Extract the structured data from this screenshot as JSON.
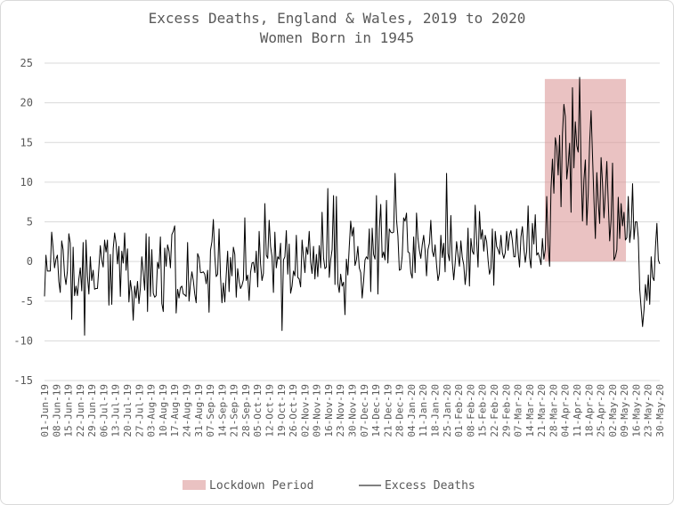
{
  "colors": {
    "line": "#000000",
    "lockdown_fill": "#dc9a9a",
    "grid": "#d9d9d9",
    "text": "#595959"
  },
  "chart_data": {
    "type": "line",
    "title": "Excess Deaths, England & Wales, 2019 to 2020",
    "subtitle": "Women Born in 1945",
    "xlabel": "",
    "ylabel": "",
    "ylim": [
      -15,
      25
    ],
    "yticks": [
      -15,
      -10,
      -5,
      0,
      5,
      10,
      15,
      20,
      25
    ],
    "grid": true,
    "legend_position": "bottom",
    "x_start": "2019-06-01",
    "x_end": "2020-05-30",
    "x_tick_labels": [
      "01-Jun-19",
      "08-Jun-19",
      "15-Jun-19",
      "22-Jun-19",
      "29-Jun-19",
      "06-Jul-19",
      "13-Jul-19",
      "20-Jul-19",
      "27-Jul-19",
      "03-Aug-19",
      "10-Aug-19",
      "17-Aug-19",
      "24-Aug-19",
      "31-Aug-19",
      "07-Sep-19",
      "14-Sep-19",
      "21-Sep-19",
      "28-Sep-19",
      "05-Oct-19",
      "12-Oct-19",
      "19-Oct-19",
      "26-Oct-19",
      "02-Nov-19",
      "09-Nov-19",
      "16-Nov-19",
      "23-Nov-19",
      "30-Nov-19",
      "07-Dec-19",
      "14-Dec-19",
      "21-Dec-19",
      "28-Dec-19",
      "04-Jan-20",
      "11-Jan-20",
      "18-Jan-20",
      "25-Jan-20",
      "01-Feb-20",
      "08-Feb-20",
      "15-Feb-20",
      "22-Feb-20",
      "29-Feb-20",
      "07-Mar-20",
      "14-Mar-20",
      "21-Mar-20",
      "28-Mar-20",
      "04-Apr-20",
      "11-Apr-20",
      "18-Apr-20",
      "25-Apr-20",
      "02-May-20",
      "09-May-20",
      "16-May-20",
      "23-May-20",
      "30-May-20"
    ],
    "series": [
      {
        "name": "Excess Deaths",
        "type": "line",
        "values": [
          -4.4,
          0.8,
          -1.2,
          -1.2,
          -1.2,
          3.7,
          1.7,
          -0.8,
          0.3,
          0.8,
          -2.5,
          -3.9,
          2.6,
          1.5,
          -1.7,
          -2.9,
          -1.2,
          3.5,
          2.3,
          -7.3,
          1.8,
          -4.3,
          -3.1,
          -4.3,
          -2.2,
          -0.8,
          -3.7,
          2.4,
          -9.3,
          2.7,
          -1.8,
          -4.1,
          0.6,
          -2.4,
          -1.1,
          -3.5,
          -3.4,
          -3.4,
          -0.8,
          2.0,
          0.2,
          -0.7,
          2.7,
          1.2,
          2.7,
          -5.5,
          0.9,
          -5.4,
          1.6,
          3.6,
          2.3,
          -0.3,
          1.9,
          -4.4,
          1.3,
          -0.2,
          3.6,
          -1.1,
          1.6,
          -5.1,
          -2.4,
          -3.8,
          -7.4,
          -3.1,
          -4.6,
          -2.5,
          -5.3,
          -3.3,
          0.6,
          -1.4,
          -3.6,
          3.5,
          -6.3,
          3.1,
          -4.4,
          1.5,
          -4.0,
          -4.5,
          -4.3,
          -0.1,
          -0.9,
          3.1,
          -5.3,
          -6.3,
          1.7,
          -0.6,
          2.1,
          1.3,
          -0.8,
          3.4,
          3.8,
          4.5,
          -6.5,
          -3.5,
          -4.6,
          -3.3,
          -3.1,
          -4.1,
          -4.2,
          -4.4,
          2.4,
          -5.0,
          -2.8,
          -1.3,
          -2.4,
          -4.1,
          -5.2,
          1.0,
          0.5,
          -1.4,
          -1.4,
          -1.3,
          -1.6,
          -2.8,
          -1.1,
          -6.4,
          1.4,
          2.5,
          5.3,
          0.7,
          -1.9,
          -1.6,
          4.1,
          -1.9,
          -5.2,
          -2.7,
          -5.1,
          -1.7,
          1.3,
          -3.8,
          0.5,
          -1.8,
          1.8,
          0.9,
          -4.5,
          -0.9,
          -2.5,
          -3.4,
          -3.0,
          -2.3,
          5.5,
          -2.4,
          -1.7,
          -4.9,
          -1.4,
          -0.2,
          -0.1,
          -1.4,
          1.3,
          -3.2,
          3.8,
          -0.3,
          -2.4,
          -1.5,
          7.3,
          0.8,
          0.4,
          5.2,
          1.9,
          0.6,
          -3.9,
          3.7,
          -0.8,
          0.6,
          0.3,
          2.3,
          -8.7,
          0.2,
          0.6,
          3.9,
          -1.6,
          2.2,
          -4.0,
          -3.1,
          -1.2,
          -1.8,
          3.3,
          -2.0,
          -2.2,
          -3.2,
          2.7,
          0.6,
          -1.4,
          1.8,
          0.9,
          3.8,
          -0.1,
          -1.5,
          1.9,
          -2.2,
          0.9,
          -1.9,
          2.0,
          -0.8,
          6.2,
          0.5,
          -0.9,
          -0.7,
          9.2,
          -2.0,
          0.2,
          1.5,
          8.3,
          -2.9,
          8.2,
          -2.7,
          -3.9,
          -1.6,
          -3.1,
          -2.6,
          -6.7,
          0.3,
          -1.7,
          1.9,
          5.1,
          3.2,
          4.3,
          -0.5,
          0.2,
          1.9,
          -0.8,
          -1.4,
          -4.6,
          -2.5,
          0.2,
          0.6,
          0.3,
          4.1,
          -3.8,
          4.2,
          0.9,
          0.3,
          8.3,
          -4.1,
          4.1,
          7.2,
          0.5,
          1.2,
          0.2,
          7.7,
          -0.2,
          4.1,
          3.7,
          3.6,
          3.7,
          11.1,
          5.3,
          3.2,
          -1.1,
          -1.0,
          0.7,
          5.5,
          5.1,
          6.1,
          1.2,
          1.1,
          -1.4,
          -2.1,
          3.1,
          -1.4,
          6.1,
          2.9,
          1.4,
          0.4,
          2.1,
          3.3,
          1.4,
          -1.8,
          1.5,
          2.3,
          5.2,
          1.3,
          0.6,
          2.1,
          -0.4,
          -2.4,
          -1.5,
          3.3,
          0.5,
          2.3,
          -1.3,
          11.1,
          1.0,
          0.1,
          5.8,
          -0.1,
          -2.3,
          -0.2,
          2.5,
          0.8,
          -0.6,
          2.6,
          0.5,
          -0.4,
          -2.9,
          -1.0,
          4.2,
          -3.1,
          2.9,
          1.3,
          0.9,
          7.1,
          2.7,
          -0.7,
          6.3,
          2.8,
          4.0,
          1.3,
          3.3,
          2.5,
          0.2,
          -1.6,
          -0.9,
          4.1,
          -3.0,
          3.8,
          1.9,
          1.5,
          0.9,
          3.3,
          1.1,
          0.4,
          1.1,
          3.8,
          1.4,
          3.3,
          3.9,
          2.6,
          0.6,
          0.6,
          4.1,
          1.2,
          -0.7,
          3.1,
          4.4,
          1.8,
          -0.1,
          1.3,
          7.0,
          0.5,
          -0.8,
          4.8,
          2.2,
          5.9,
          0.8,
          1.1,
          0.5,
          -0.4,
          2.9,
          0.3,
          1.5,
          8.2,
          2.1,
          -0.6,
          9.2,
          12.9,
          8.6,
          15.6,
          14.5,
          10.9,
          15.9,
          6.9,
          16.1,
          19.8,
          18.3,
          10.4,
          12.2,
          14.9,
          6.2,
          21.9,
          11.8,
          17.6,
          14.6,
          13.8,
          23.2,
          12.0,
          5.1,
          10.3,
          12.8,
          4.6,
          8.6,
          15.0,
          19.0,
          13.4,
          7.8,
          2.9,
          11.2,
          7.5,
          4.8,
          13.1,
          9.8,
          5.5,
          8.7,
          12.6,
          7.5,
          2.6,
          5.2,
          12.4,
          0.2,
          0.6,
          1.5,
          8.1,
          2.9,
          7.3,
          4.5,
          6.2,
          2.7,
          3.0,
          8.2,
          2.4,
          4.1,
          9.8,
          2.8,
          5.0,
          5.0,
          3.0,
          -3.5,
          -5.9,
          -8.2,
          -6.1,
          -2.9,
          -4.9,
          -1.7,
          -5.4,
          0.6,
          -2.0,
          -2.4,
          1.8,
          4.8,
          0.2,
          -0.3
        ]
      },
      {
        "name": "Lockdown Period",
        "type": "area",
        "start": "2020-03-23",
        "end": "2020-05-10",
        "value": 23
      }
    ]
  },
  "legend": {
    "lockdown_label": "Lockdown Period",
    "excess_label": "Excess Deaths"
  }
}
